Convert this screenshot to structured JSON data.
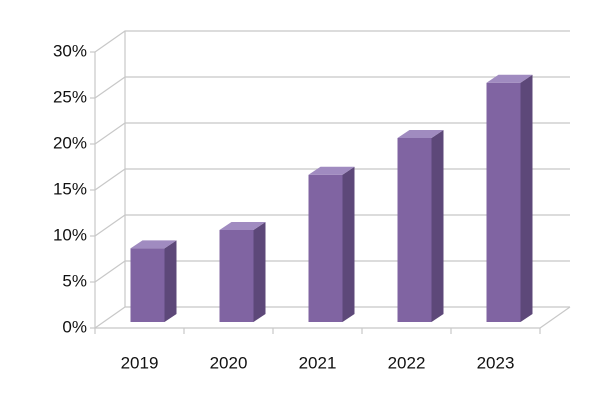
{
  "chart_data": {
    "type": "bar3d",
    "categories": [
      "2019",
      "2020",
      "2021",
      "2022",
      "2023"
    ],
    "values": [
      8,
      10,
      16,
      20,
      26
    ],
    "colors": {
      "front": "#8064a2",
      "side": "#5d4879",
      "top": "#a08bc0"
    },
    "ylim": [
      0,
      30
    ],
    "yticks": [
      {
        "value": 0,
        "label": "0%"
      },
      {
        "value": 5,
        "label": "5%"
      },
      {
        "value": 10,
        "label": "10%"
      },
      {
        "value": 15,
        "label": "15%"
      },
      {
        "value": 20,
        "label": "20%"
      },
      {
        "value": 25,
        "label": "25%"
      },
      {
        "value": 30,
        "label": "30%"
      }
    ],
    "grid": true
  }
}
